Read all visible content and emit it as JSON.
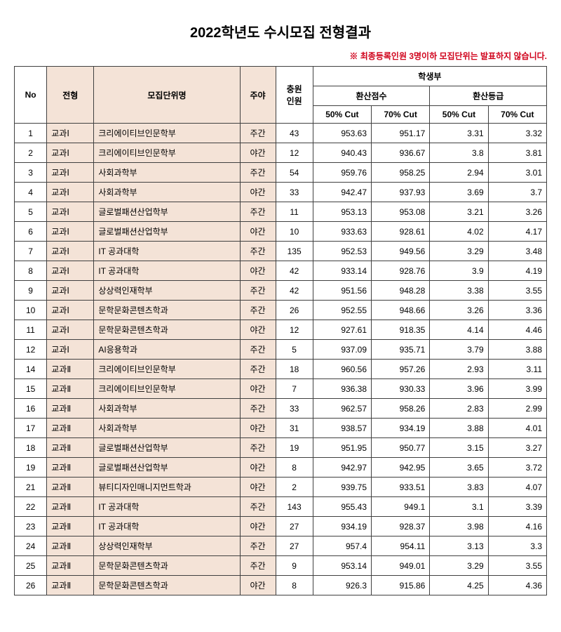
{
  "title": "2022학년도 수시모집 전형결과",
  "note_prefix": "※ ",
  "note_text": "최종등록인원 3명이하 모집단위는 발표하지 않습니다.",
  "note_color": "#d0021b",
  "tint_color": "#f4e3d7",
  "border_color": "#404040",
  "headers": {
    "no": "No",
    "type": "전형",
    "dept": "모집단위명",
    "time": "주야",
    "capacity_l1": "충원",
    "capacity_l2": "인원",
    "group": "학생부",
    "score": "환산점수",
    "grade": "환산등급",
    "cut50": "50% Cut",
    "cut70": "70% Cut"
  },
  "rows": [
    {
      "no": "1",
      "type": "교과Ⅰ",
      "dept": "크리에이티브인문학부",
      "time": "주간",
      "cap": "43",
      "s50": "953.63",
      "s70": "951.17",
      "g50": "3.31",
      "g70": "3.32"
    },
    {
      "no": "2",
      "type": "교과Ⅰ",
      "dept": "크리에이티브인문학부",
      "time": "야간",
      "cap": "12",
      "s50": "940.43",
      "s70": "936.67",
      "g50": "3.8",
      "g70": "3.81"
    },
    {
      "no": "3",
      "type": "교과Ⅰ",
      "dept": "사회과학부",
      "time": "주간",
      "cap": "54",
      "s50": "959.76",
      "s70": "958.25",
      "g50": "2.94",
      "g70": "3.01"
    },
    {
      "no": "4",
      "type": "교과Ⅰ",
      "dept": "사회과학부",
      "time": "야간",
      "cap": "33",
      "s50": "942.47",
      "s70": "937.93",
      "g50": "3.69",
      "g70": "3.7"
    },
    {
      "no": "5",
      "type": "교과Ⅰ",
      "dept": "글로벌패션산업학부",
      "time": "주간",
      "cap": "11",
      "s50": "953.13",
      "s70": "953.08",
      "g50": "3.21",
      "g70": "3.26"
    },
    {
      "no": "6",
      "type": "교과Ⅰ",
      "dept": "글로벌패션산업학부",
      "time": "야간",
      "cap": "10",
      "s50": "933.63",
      "s70": "928.61",
      "g50": "4.02",
      "g70": "4.17"
    },
    {
      "no": "7",
      "type": "교과Ⅰ",
      "dept": "IT 공과대학",
      "time": "주간",
      "cap": "135",
      "s50": "952.53",
      "s70": "949.56",
      "g50": "3.29",
      "g70": "3.48"
    },
    {
      "no": "8",
      "type": "교과Ⅰ",
      "dept": "IT 공과대학",
      "time": "야간",
      "cap": "42",
      "s50": "933.14",
      "s70": "928.76",
      "g50": "3.9",
      "g70": "4.19"
    },
    {
      "no": "9",
      "type": "교과Ⅰ",
      "dept": "상상력인재학부",
      "time": "주간",
      "cap": "42",
      "s50": "951.56",
      "s70": "948.28",
      "g50": "3.38",
      "g70": "3.55"
    },
    {
      "no": "10",
      "type": "교과Ⅰ",
      "dept": "문학문화콘텐츠학과",
      "time": "주간",
      "cap": "26",
      "s50": "952.55",
      "s70": "948.66",
      "g50": "3.26",
      "g70": "3.36"
    },
    {
      "no": "11",
      "type": "교과Ⅰ",
      "dept": "문학문화콘텐츠학과",
      "time": "야간",
      "cap": "12",
      "s50": "927.61",
      "s70": "918.35",
      "g50": "4.14",
      "g70": "4.46"
    },
    {
      "no": "12",
      "type": "교과Ⅰ",
      "dept": "AI응용학과",
      "time": "주간",
      "cap": "5",
      "s50": "937.09",
      "s70": "935.71",
      "g50": "3.79",
      "g70": "3.88"
    },
    {
      "no": "14",
      "type": "교과Ⅱ",
      "dept": "크리에이티브인문학부",
      "time": "주간",
      "cap": "18",
      "s50": "960.56",
      "s70": "957.26",
      "g50": "2.93",
      "g70": "3.11"
    },
    {
      "no": "15",
      "type": "교과Ⅱ",
      "dept": "크리에이티브인문학부",
      "time": "야간",
      "cap": "7",
      "s50": "936.38",
      "s70": "930.33",
      "g50": "3.96",
      "g70": "3.99"
    },
    {
      "no": "16",
      "type": "교과Ⅱ",
      "dept": "사회과학부",
      "time": "주간",
      "cap": "33",
      "s50": "962.57",
      "s70": "958.26",
      "g50": "2.83",
      "g70": "2.99"
    },
    {
      "no": "17",
      "type": "교과Ⅱ",
      "dept": "사회과학부",
      "time": "야간",
      "cap": "31",
      "s50": "938.57",
      "s70": "934.19",
      "g50": "3.88",
      "g70": "4.01"
    },
    {
      "no": "18",
      "type": "교과Ⅱ",
      "dept": "글로벌패션산업학부",
      "time": "주간",
      "cap": "19",
      "s50": "951.95",
      "s70": "950.77",
      "g50": "3.15",
      "g70": "3.27"
    },
    {
      "no": "19",
      "type": "교과Ⅱ",
      "dept": "글로벌패션산업학부",
      "time": "야간",
      "cap": "8",
      "s50": "942.97",
      "s70": "942.95",
      "g50": "3.65",
      "g70": "3.72"
    },
    {
      "no": "21",
      "type": "교과Ⅱ",
      "dept": "뷰티디자인매니지먼트학과",
      "time": "야간",
      "cap": "2",
      "s50": "939.75",
      "s70": "933.51",
      "g50": "3.83",
      "g70": "4.07"
    },
    {
      "no": "22",
      "type": "교과Ⅱ",
      "dept": "IT 공과대학",
      "time": "주간",
      "cap": "143",
      "s50": "955.43",
      "s70": "949.1",
      "g50": "3.1",
      "g70": "3.39"
    },
    {
      "no": "23",
      "type": "교과Ⅱ",
      "dept": "IT 공과대학",
      "time": "야간",
      "cap": "27",
      "s50": "934.19",
      "s70": "928.37",
      "g50": "3.98",
      "g70": "4.16"
    },
    {
      "no": "24",
      "type": "교과Ⅱ",
      "dept": "상상력인재학부",
      "time": "주간",
      "cap": "27",
      "s50": "957.4",
      "s70": "954.11",
      "g50": "3.13",
      "g70": "3.3"
    },
    {
      "no": "25",
      "type": "교과Ⅱ",
      "dept": "문학문화콘텐츠학과",
      "time": "주간",
      "cap": "9",
      "s50": "953.14",
      "s70": "949.01",
      "g50": "3.29",
      "g70": "3.55"
    },
    {
      "no": "26",
      "type": "교과Ⅱ",
      "dept": "문학문화콘텐츠학과",
      "time": "야간",
      "cap": "8",
      "s50": "926.3",
      "s70": "915.86",
      "g50": "4.25",
      "g70": "4.36"
    }
  ]
}
